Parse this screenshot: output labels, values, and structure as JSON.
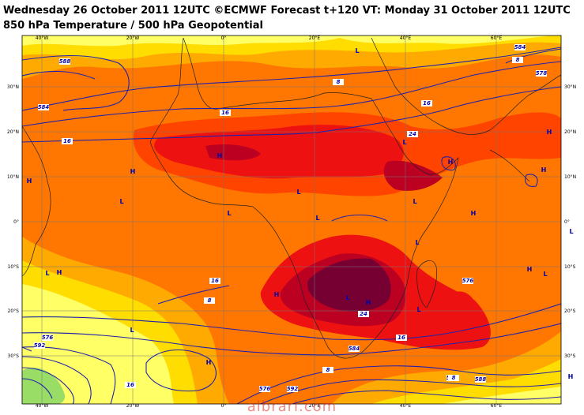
{
  "title_line1": "Wednesday 26 October 2011 12UTC ©ECMWF Forecast t+120 VT: Monday 31 October 2011 12UTC",
  "title_line2": "850 hPa Temperature / 500 hPa Geopotential",
  "watermark": "albrari.com",
  "lon_ticks_top": [
    "40°W",
    "20°W",
    "0°",
    "20°E",
    "40°E",
    "60°E"
  ],
  "lon_ticks_bottom": [
    "40°W",
    "20°W",
    "0°",
    "20°E",
    "40°E",
    "60°E"
  ],
  "lat_ticks": [
    "30°N",
    "20°N",
    "10°N",
    "0°",
    "10°S",
    "20°S",
    "30°S"
  ],
  "colors": {
    "cool_yellow": "#ffff66",
    "yellow": "#ffdd00",
    "light_orange": "#ffaa00",
    "orange": "#ff7700",
    "red_orange": "#ff4400",
    "red": "#ee1111",
    "dark_red": "#bb0022",
    "maroon": "#770033",
    "green_cold": "#99dd66",
    "contour_blue": "#2222aa",
    "grid": "#777777"
  },
  "contour_labels": [
    "588",
    "8",
    "16",
    "16",
    "16",
    "24",
    "584",
    "578",
    "16",
    "8",
    "24",
    "16",
    "576",
    "584",
    "592",
    "588",
    "576",
    "16",
    "8",
    "584",
    "576",
    "592",
    "8",
    "8",
    "576"
  ],
  "pressure_marks": [
    "H",
    "L",
    "H",
    "H",
    "L",
    "H",
    "H",
    "L",
    "H",
    "L",
    "L",
    "L",
    "L",
    "L",
    "H",
    "L",
    "H",
    "L",
    "H",
    "H",
    "L",
    "L",
    "H",
    "H",
    "L",
    "H",
    "L"
  ]
}
